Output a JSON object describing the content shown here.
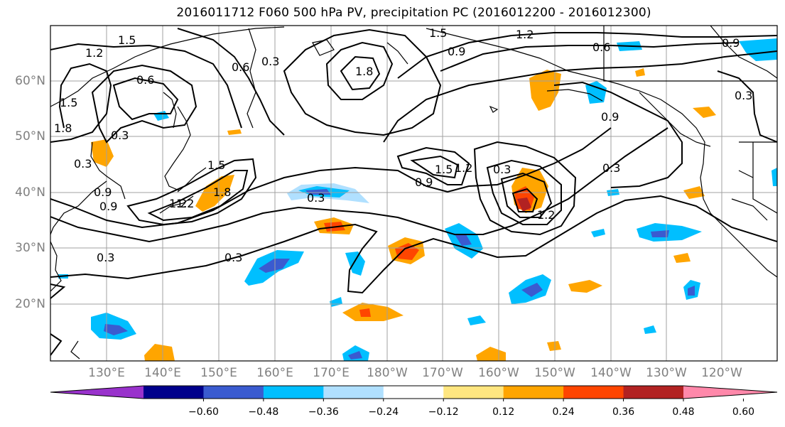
{
  "title": "2016011712 F060 500 hPa PV, precipitation PC (2016012200 - 2016012300)",
  "map": {
    "lat_labels": [
      "60°N",
      "50°N",
      "40°N",
      "30°N",
      "20°N"
    ],
    "lon_labels": [
      "130°E",
      "140°E",
      "150°E",
      "160°E",
      "170°E",
      "180°W",
      "170°W",
      "160°W",
      "150°W",
      "140°W",
      "130°W",
      "120°W"
    ],
    "contour_labels": [
      "1.2",
      "1.5",
      "0.6",
      "0.3",
      "1.8",
      "1.5",
      "0.9",
      "1.2",
      "0.6",
      "0.9",
      "0.3",
      "0.3",
      "0.9",
      "1.5",
      "1.2",
      "1.8",
      "0.3",
      "0.9",
      "1.5",
      "1.2",
      "0.3",
      "0.9",
      "0.3",
      "1.2",
      "0.3",
      "0.3",
      "1.5",
      "1.8",
      "1.2",
      "0.9",
      "0.6",
      "0.3"
    ],
    "colors": {
      "land": "#000000",
      "grid": "#a0a0a0",
      "contour": "#000000"
    }
  },
  "colorbar": {
    "tick_labels": [
      "−0.60",
      "−0.48",
      "−0.36",
      "−0.24",
      "−0.12",
      "0.12",
      "0.24",
      "0.36",
      "0.48",
      "0.60"
    ],
    "colors": [
      "#9932cc",
      "#00008b",
      "#3a5bd0",
      "#00bfff",
      "#b0e0ff",
      "#ffffff",
      "#ffe680",
      "#ffa500",
      "#ff4500",
      "#b22222",
      "#ff88aa"
    ]
  }
}
